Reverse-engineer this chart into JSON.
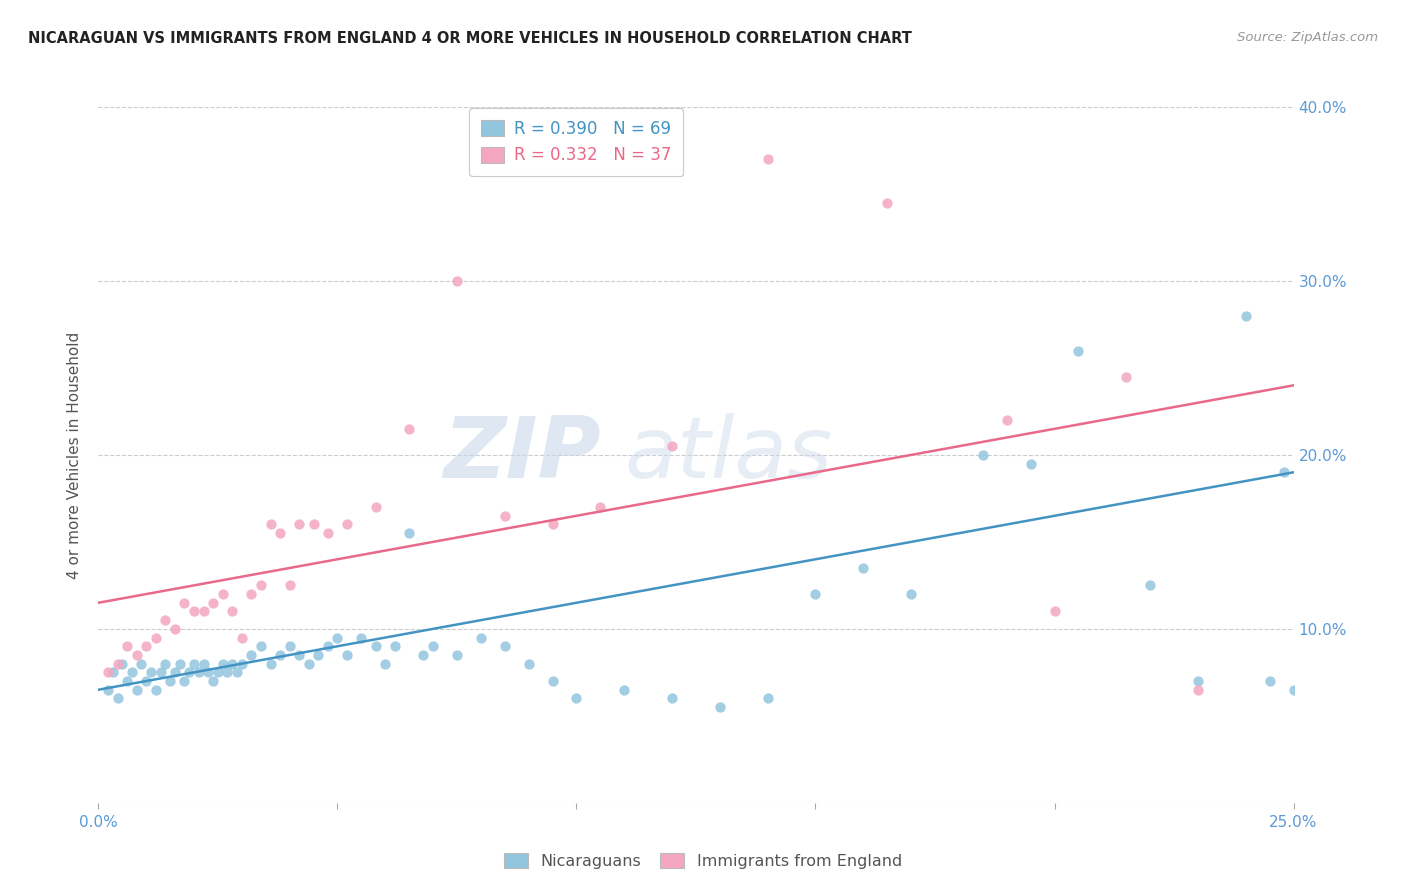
{
  "title": "NICARAGUAN VS IMMIGRANTS FROM ENGLAND 4 OR MORE VEHICLES IN HOUSEHOLD CORRELATION CHART",
  "source": "Source: ZipAtlas.com",
  "ylabel": "4 or more Vehicles in Household",
  "xlim": [
    0.0,
    0.25
  ],
  "ylim": [
    0.0,
    0.4
  ],
  "xticks": [
    0.0,
    0.05,
    0.1,
    0.15,
    0.2,
    0.25
  ],
  "xtick_labels_bottom": [
    "0.0%",
    "",
    "",
    "",
    "",
    "25.0%"
  ],
  "yticks": [
    0.0,
    0.1,
    0.2,
    0.3,
    0.4
  ],
  "ytick_labels_right": [
    "",
    "10.0%",
    "20.0%",
    "30.0%",
    "40.0%"
  ],
  "blue_color": "#92c5de",
  "pink_color": "#f4a6c0",
  "blue_line_color": "#4393c3",
  "pink_line_color": "#e8698a",
  "axis_label_color": "#5b9bd5",
  "legend_R_blue": "0.390",
  "legend_N_blue": "69",
  "legend_R_pink": "0.332",
  "legend_N_pink": "37",
  "watermark_zip": "ZIP",
  "watermark_atlas": "atlas",
  "blue_scatter_x": [
    0.002,
    0.003,
    0.004,
    0.005,
    0.006,
    0.007,
    0.008,
    0.009,
    0.01,
    0.011,
    0.012,
    0.013,
    0.014,
    0.015,
    0.016,
    0.017,
    0.018,
    0.019,
    0.02,
    0.021,
    0.022,
    0.023,
    0.024,
    0.025,
    0.026,
    0.027,
    0.028,
    0.029,
    0.03,
    0.032,
    0.034,
    0.036,
    0.038,
    0.04,
    0.042,
    0.044,
    0.046,
    0.048,
    0.05,
    0.052,
    0.055,
    0.058,
    0.06,
    0.062,
    0.065,
    0.068,
    0.07,
    0.075,
    0.08,
    0.085,
    0.09,
    0.095,
    0.1,
    0.11,
    0.12,
    0.13,
    0.14,
    0.15,
    0.16,
    0.17,
    0.185,
    0.195,
    0.205,
    0.22,
    0.23,
    0.24,
    0.245,
    0.248,
    0.25
  ],
  "blue_scatter_y": [
    0.065,
    0.075,
    0.06,
    0.08,
    0.07,
    0.075,
    0.065,
    0.08,
    0.07,
    0.075,
    0.065,
    0.075,
    0.08,
    0.07,
    0.075,
    0.08,
    0.07,
    0.075,
    0.08,
    0.075,
    0.08,
    0.075,
    0.07,
    0.075,
    0.08,
    0.075,
    0.08,
    0.075,
    0.08,
    0.085,
    0.09,
    0.08,
    0.085,
    0.09,
    0.085,
    0.08,
    0.085,
    0.09,
    0.095,
    0.085,
    0.095,
    0.09,
    0.08,
    0.09,
    0.155,
    0.085,
    0.09,
    0.085,
    0.095,
    0.09,
    0.08,
    0.07,
    0.06,
    0.065,
    0.06,
    0.055,
    0.06,
    0.12,
    0.135,
    0.12,
    0.2,
    0.195,
    0.26,
    0.125,
    0.07,
    0.28,
    0.07,
    0.19,
    0.065
  ],
  "pink_scatter_x": [
    0.002,
    0.004,
    0.006,
    0.008,
    0.01,
    0.012,
    0.014,
    0.016,
    0.018,
    0.02,
    0.022,
    0.024,
    0.026,
    0.028,
    0.03,
    0.032,
    0.034,
    0.036,
    0.038,
    0.04,
    0.042,
    0.045,
    0.048,
    0.052,
    0.058,
    0.065,
    0.075,
    0.085,
    0.095,
    0.105,
    0.12,
    0.14,
    0.165,
    0.19,
    0.2,
    0.215,
    0.23
  ],
  "pink_scatter_y": [
    0.075,
    0.08,
    0.09,
    0.085,
    0.09,
    0.095,
    0.105,
    0.1,
    0.115,
    0.11,
    0.11,
    0.115,
    0.12,
    0.11,
    0.095,
    0.12,
    0.125,
    0.16,
    0.155,
    0.125,
    0.16,
    0.16,
    0.155,
    0.16,
    0.17,
    0.215,
    0.3,
    0.165,
    0.16,
    0.17,
    0.205,
    0.37,
    0.345,
    0.22,
    0.11,
    0.245,
    0.065
  ],
  "blue_line_start_y": 0.065,
  "blue_line_end_y": 0.19,
  "pink_line_start_y": 0.115,
  "pink_line_end_y": 0.24
}
